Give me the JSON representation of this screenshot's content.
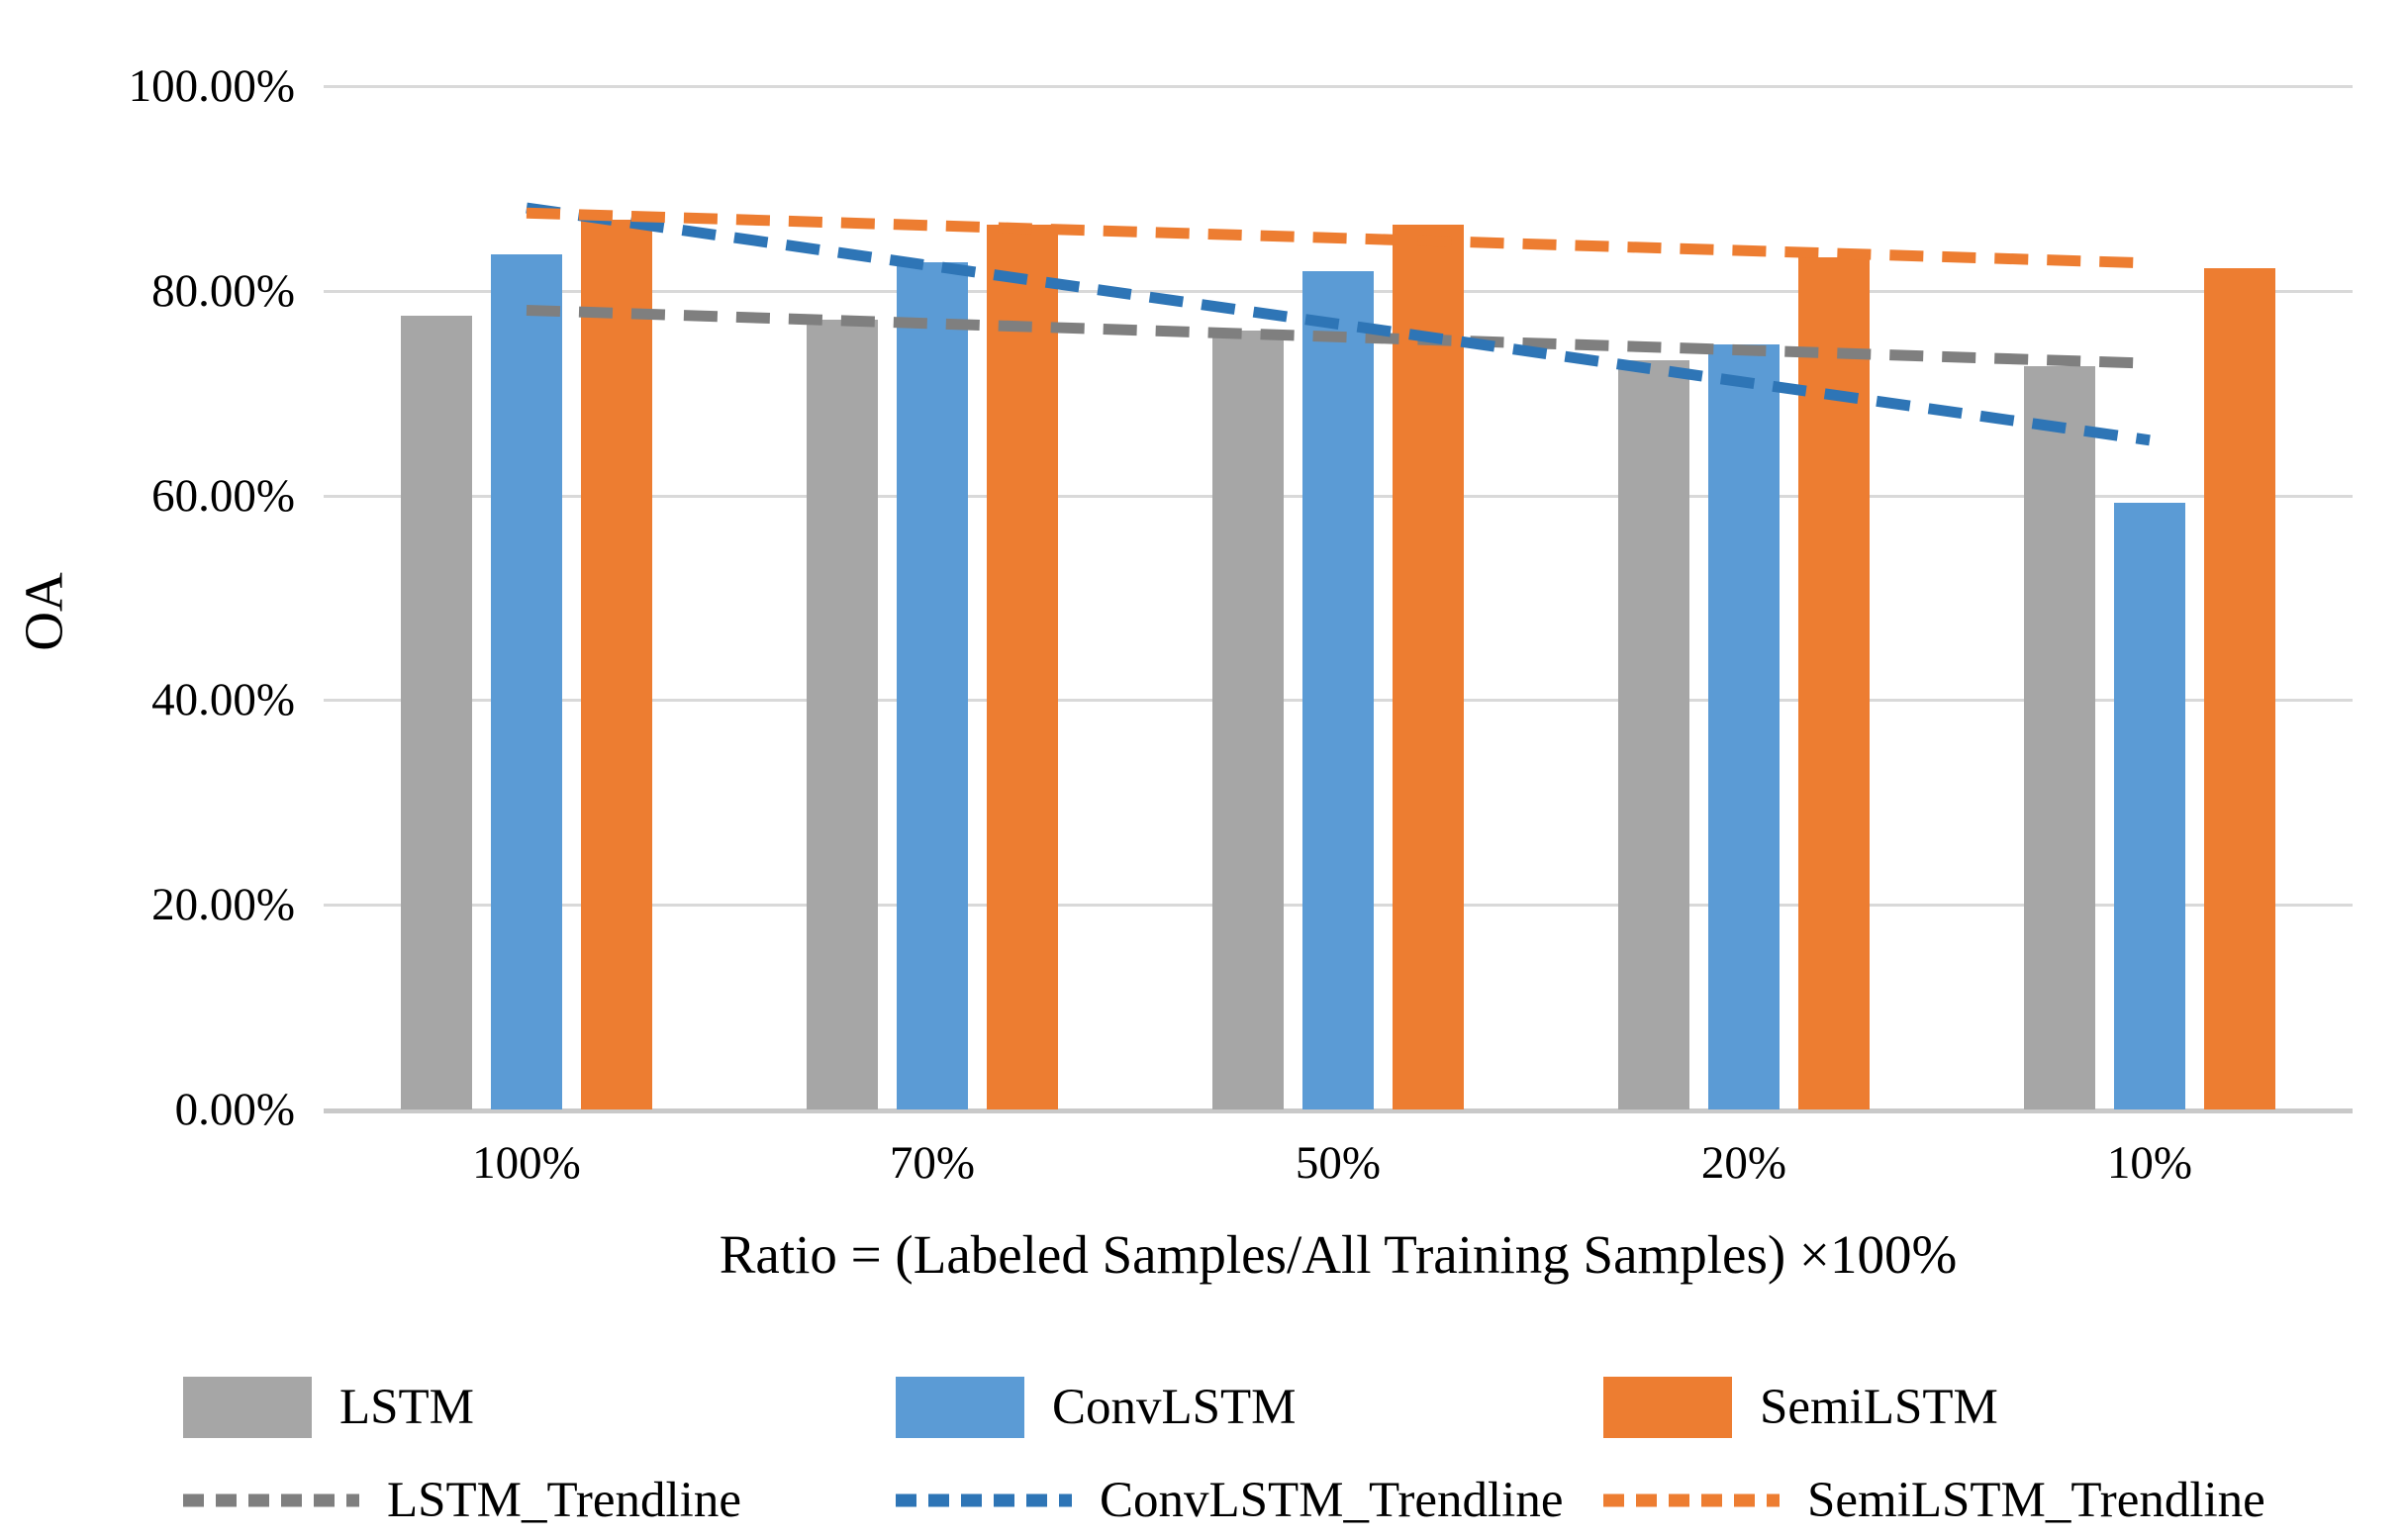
{
  "chart_data": {
    "type": "bar",
    "title": "",
    "xlabel": "Ratio = (Labeled Samples/All Training Samples) ×100%",
    "ylabel": "OA",
    "categories": [
      "100%",
      "70%",
      "50%",
      "20%",
      "10%"
    ],
    "y_ticks": [
      "100.00%",
      "80.00%",
      "60.00%",
      "40.00%",
      "20.00%",
      "0.00%"
    ],
    "ylim": [
      0,
      100
    ],
    "grid": true,
    "legend_position": "bottom",
    "series": [
      {
        "name": "LSTM",
        "color": "#A6A6A6",
        "values": [
          77.6,
          77.2,
          76.1,
          73.2,
          72.6
        ]
      },
      {
        "name": "ConvLSTM",
        "color": "#5B9BD5",
        "values": [
          83.6,
          82.8,
          81.9,
          74.8,
          59.3
        ]
      },
      {
        "name": "SemiLSTM",
        "color": "#ED7D31",
        "values": [
          86.9,
          86.5,
          86.5,
          83.3,
          82.2
        ]
      }
    ],
    "trendlines": [
      {
        "name": "LSTM_Trendline",
        "color": "#7F7F7F",
        "start": 78.1,
        "end": 72.9
      },
      {
        "name": "ConvLSTM_Trendline",
        "color": "#2E75B6",
        "start": 88.1,
        "end": 65.4
      },
      {
        "name": "SemiLSTM_Trendline",
        "color": "#ED7D31",
        "start": 87.6,
        "end": 82.7
      }
    ]
  }
}
